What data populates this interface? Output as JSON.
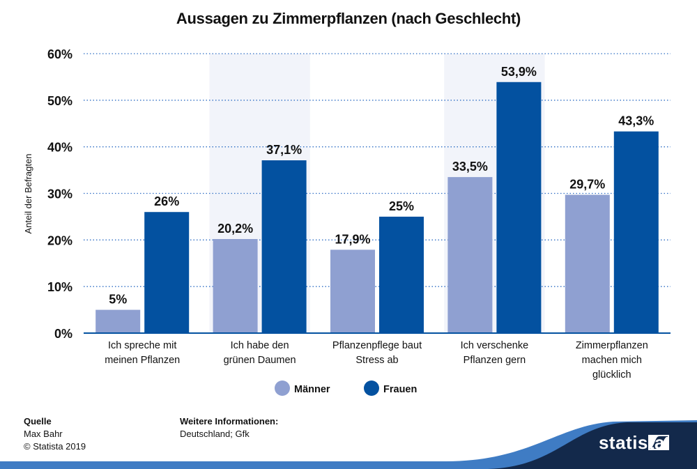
{
  "chart_data": {
    "type": "bar",
    "title": "Aussagen zu Zimmerpflanzen (nach Geschlecht)",
    "xlabel": "",
    "ylabel": "Anteil der Befragten",
    "ylim": [
      0,
      60
    ],
    "yticks": [
      0,
      10,
      20,
      30,
      40,
      50,
      60
    ],
    "ytick_labels": [
      "0%",
      "10%",
      "20%",
      "30%",
      "40%",
      "50%",
      "60%"
    ],
    "grid": true,
    "legend_position": "bottom-center",
    "categories": [
      [
        "Ich spreche mit",
        "meinen Pflanzen"
      ],
      [
        "Ich habe den",
        "grünen Daumen"
      ],
      [
        "Pflanzenpflege baut",
        "Stress ab"
      ],
      [
        "Ich verschenke",
        "Pflanzen gern"
      ],
      [
        "Zimmerpflanzen",
        "machen mich",
        "glücklich"
      ]
    ],
    "series": [
      {
        "name": "Männer",
        "color": "#8fa0d1",
        "values": [
          5,
          20.2,
          17.9,
          33.5,
          29.7
        ],
        "labels": [
          "5%",
          "20,2%",
          "17,9%",
          "33,5%",
          "29,7%"
        ]
      },
      {
        "name": "Frauen",
        "color": "#0351a0",
        "values": [
          26,
          37.1,
          25,
          53.9,
          43.3
        ],
        "labels": [
          "26%",
          "37,1%",
          "25%",
          "53,9%",
          "43,3%"
        ]
      }
    ],
    "shaded_categories": [
      1,
      3
    ]
  },
  "footer": {
    "source_heading": "Quelle",
    "source_name": "Max Bahr",
    "copyright": "© Statista 2019",
    "info_heading": "Weitere Informationen:",
    "info_text": "Deutschland; Gfk"
  },
  "logo": {
    "text": "statista",
    "icon": "statista-logo-icon"
  },
  "colors": {
    "grid": "#2f6ec4",
    "axis": "#0351a0",
    "band": "#f2f4fa",
    "footer_dark": "#13294b",
    "footer_wave": "#3f7cc4"
  }
}
